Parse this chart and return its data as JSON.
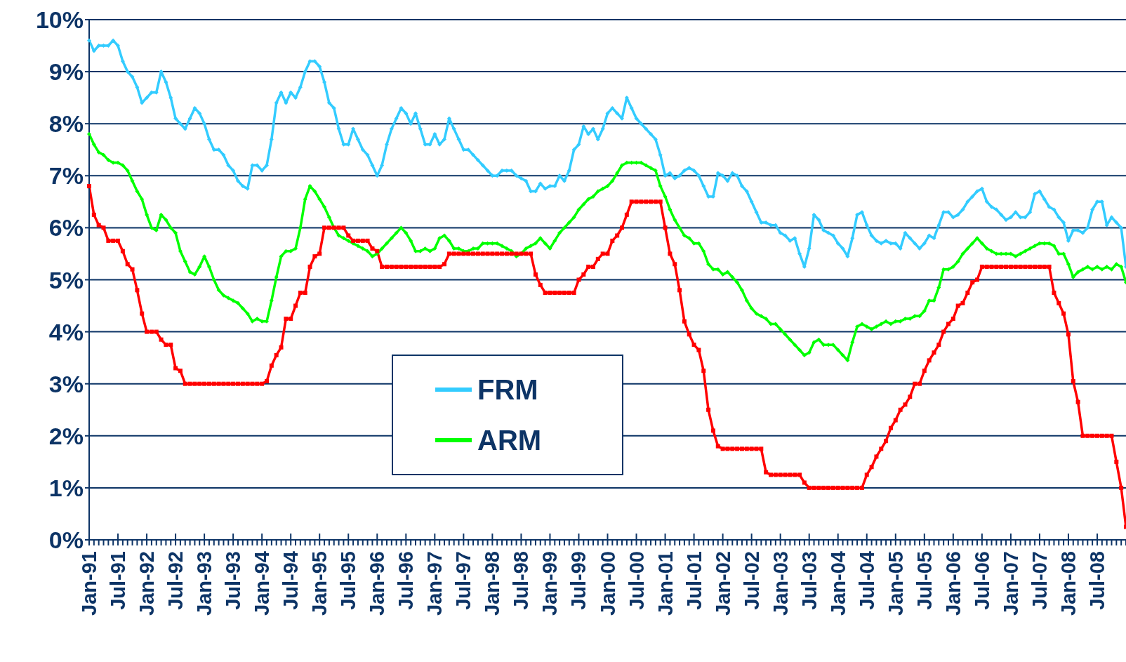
{
  "chart_data": {
    "type": "line",
    "categories": [
      "Jan-91",
      null,
      null,
      null,
      null,
      null,
      "Jul-91",
      null,
      null,
      null,
      null,
      null,
      "Jan-92",
      null,
      null,
      null,
      null,
      null,
      "Jul-92",
      null,
      null,
      null,
      null,
      null,
      "Jan-93",
      null,
      null,
      null,
      null,
      null,
      "Jul-93",
      null,
      null,
      null,
      null,
      null,
      "Jan-94",
      null,
      null,
      null,
      null,
      null,
      "Jul-94",
      null,
      null,
      null,
      null,
      null,
      "Jan-95",
      null,
      null,
      null,
      null,
      null,
      "Jul-95",
      null,
      null,
      null,
      null,
      null,
      "Jan-96",
      null,
      null,
      null,
      null,
      null,
      "Jul-96",
      null,
      null,
      null,
      null,
      null,
      "Jan-97",
      null,
      null,
      null,
      null,
      null,
      "Jul-97",
      null,
      null,
      null,
      null,
      null,
      "Jan-98",
      null,
      null,
      null,
      null,
      null,
      "Jul-98",
      null,
      null,
      null,
      null,
      null,
      "Jan-99",
      null,
      null,
      null,
      null,
      null,
      "Jul-99",
      null,
      null,
      null,
      null,
      null,
      "Jan-00",
      null,
      null,
      null,
      null,
      null,
      "Jul-00",
      null,
      null,
      null,
      null,
      null,
      "Jan-01",
      null,
      null,
      null,
      null,
      null,
      "Jul-01",
      null,
      null,
      null,
      null,
      null,
      "Jan-02",
      null,
      null,
      null,
      null,
      null,
      "Jul-02",
      null,
      null,
      null,
      null,
      null,
      "Jan-03",
      null,
      null,
      null,
      null,
      null,
      "Jul-03",
      null,
      null,
      null,
      null,
      null,
      "Jan-04",
      null,
      null,
      null,
      null,
      null,
      "Jul-04",
      null,
      null,
      null,
      null,
      null,
      "Jan-05",
      null,
      null,
      null,
      null,
      null,
      "Jul-05",
      null,
      null,
      null,
      null,
      null,
      "Jan-06",
      null,
      null,
      null,
      null,
      null,
      "Jul-06",
      null,
      null,
      null,
      null,
      null,
      "Jan-07",
      null,
      null,
      null,
      null,
      null,
      "Jul-07",
      null,
      null,
      null,
      null,
      null,
      "Jan-08",
      null,
      null,
      null,
      null,
      null,
      "Jul-08",
      null,
      null,
      null,
      null,
      null,
      null
    ],
    "series": [
      {
        "name": "FRM",
        "color": "#33ccff",
        "marker": "diamond",
        "values": [
          9.6,
          9.4,
          9.5,
          9.5,
          9.5,
          9.6,
          9.5,
          9.2,
          9.0,
          8.9,
          8.7,
          8.4,
          8.5,
          8.6,
          8.6,
          9.0,
          8.8,
          8.5,
          8.1,
          8.0,
          7.9,
          8.1,
          8.3,
          8.2,
          8.0,
          7.7,
          7.5,
          7.5,
          7.4,
          7.2,
          7.1,
          6.9,
          6.8,
          6.75,
          7.2,
          7.2,
          7.1,
          7.2,
          7.7,
          8.4,
          8.6,
          8.4,
          8.6,
          8.5,
          8.7,
          9.0,
          9.2,
          9.2,
          9.1,
          8.8,
          8.4,
          8.3,
          7.9,
          7.6,
          7.6,
          7.9,
          7.7,
          7.5,
          7.4,
          7.2,
          7.0,
          7.2,
          7.6,
          7.9,
          8.1,
          8.3,
          8.2,
          8.0,
          8.2,
          7.9,
          7.6,
          7.6,
          7.8,
          7.6,
          7.7,
          8.1,
          7.9,
          7.7,
          7.5,
          7.5,
          7.4,
          7.3,
          7.2,
          7.1,
          7.0,
          7.0,
          7.1,
          7.1,
          7.1,
          7.0,
          6.95,
          6.9,
          6.7,
          6.7,
          6.85,
          6.75,
          6.8,
          6.8,
          7.0,
          6.9,
          7.1,
          7.5,
          7.6,
          7.95,
          7.8,
          7.9,
          7.7,
          7.9,
          8.2,
          8.3,
          8.2,
          8.1,
          8.5,
          8.3,
          8.1,
          8.0,
          7.9,
          7.8,
          7.7,
          7.4,
          7.0,
          7.05,
          6.95,
          7.0,
          7.1,
          7.15,
          7.1,
          7.0,
          6.8,
          6.6,
          6.6,
          7.05,
          7.0,
          6.9,
          7.05,
          7.0,
          6.8,
          6.7,
          6.5,
          6.3,
          6.1,
          6.1,
          6.05,
          6.05,
          5.9,
          5.85,
          5.75,
          5.8,
          5.5,
          5.25,
          5.6,
          6.25,
          6.15,
          5.95,
          5.9,
          5.85,
          5.7,
          5.6,
          5.45,
          5.8,
          6.25,
          6.3,
          6.05,
          5.85,
          5.75,
          5.7,
          5.75,
          5.7,
          5.7,
          5.6,
          5.9,
          5.8,
          5.7,
          5.6,
          5.7,
          5.85,
          5.8,
          6.05,
          6.3,
          6.3,
          6.2,
          6.25,
          6.35,
          6.5,
          6.6,
          6.7,
          6.75,
          6.5,
          6.4,
          6.35,
          6.25,
          6.15,
          6.2,
          6.3,
          6.2,
          6.2,
          6.3,
          6.65,
          6.7,
          6.55,
          6.4,
          6.35,
          6.2,
          6.1,
          5.75,
          5.95,
          5.95,
          5.9,
          6.0,
          6.35,
          6.5,
          6.5,
          6.05,
          6.2,
          6.1,
          6.0,
          5.25
        ]
      },
      {
        "name": "ARM",
        "color": "#00ff00",
        "marker": "diamond",
        "values": [
          7.8,
          7.6,
          7.45,
          7.4,
          7.3,
          7.25,
          7.25,
          7.2,
          7.1,
          6.9,
          6.7,
          6.55,
          6.25,
          6.0,
          5.95,
          6.25,
          6.15,
          6.0,
          5.9,
          5.55,
          5.35,
          5.15,
          5.1,
          5.25,
          5.45,
          5.25,
          5.0,
          4.8,
          4.7,
          4.65,
          4.6,
          4.55,
          4.45,
          4.35,
          4.2,
          4.25,
          4.2,
          4.2,
          4.6,
          5.05,
          5.45,
          5.55,
          5.55,
          5.6,
          6.0,
          6.55,
          6.8,
          6.7,
          6.55,
          6.4,
          6.2,
          6.0,
          5.85,
          5.8,
          5.75,
          5.7,
          5.65,
          5.6,
          5.55,
          5.45,
          5.5,
          5.6,
          5.7,
          5.8,
          5.9,
          6.0,
          5.9,
          5.75,
          5.55,
          5.55,
          5.6,
          5.55,
          5.6,
          5.8,
          5.85,
          5.75,
          5.6,
          5.6,
          5.55,
          5.55,
          5.6,
          5.6,
          5.7,
          5.7,
          5.7,
          5.7,
          5.65,
          5.6,
          5.55,
          5.45,
          5.5,
          5.6,
          5.65,
          5.7,
          5.8,
          5.7,
          5.6,
          5.75,
          5.9,
          6.0,
          6.1,
          6.2,
          6.35,
          6.45,
          6.55,
          6.6,
          6.7,
          6.75,
          6.8,
          6.9,
          7.05,
          7.2,
          7.25,
          7.25,
          7.25,
          7.25,
          7.2,
          7.15,
          7.1,
          6.8,
          6.6,
          6.35,
          6.15,
          6.0,
          5.85,
          5.8,
          5.7,
          5.7,
          5.55,
          5.3,
          5.2,
          5.2,
          5.1,
          5.15,
          5.05,
          4.95,
          4.8,
          4.6,
          4.45,
          4.35,
          4.3,
          4.25,
          4.15,
          4.15,
          4.05,
          3.95,
          3.85,
          3.75,
          3.65,
          3.55,
          3.6,
          3.8,
          3.85,
          3.75,
          3.75,
          3.75,
          3.65,
          3.55,
          3.45,
          3.8,
          4.1,
          4.15,
          4.1,
          4.05,
          4.1,
          4.15,
          4.2,
          4.15,
          4.2,
          4.2,
          4.25,
          4.25,
          4.3,
          4.3,
          4.4,
          4.6,
          4.6,
          4.85,
          5.2,
          5.2,
          5.25,
          5.35,
          5.5,
          5.6,
          5.7,
          5.8,
          5.7,
          5.6,
          5.55,
          5.5,
          5.5,
          5.5,
          5.5,
          5.45,
          5.5,
          5.55,
          5.6,
          5.65,
          5.7,
          5.7,
          5.7,
          5.65,
          5.5,
          5.5,
          5.3,
          5.05,
          5.15,
          5.2,
          5.25,
          5.2,
          5.25,
          5.2,
          5.25,
          5.2,
          5.3,
          5.25,
          4.95
        ]
      },
      {
        "color": "#ff0000",
        "marker": "square",
        "values": [
          6.8,
          6.25,
          6.05,
          6.0,
          5.75,
          5.75,
          5.75,
          5.55,
          5.3,
          5.2,
          4.8,
          4.35,
          4.0,
          4.0,
          4.0,
          3.85,
          3.75,
          3.75,
          3.3,
          3.25,
          3.0,
          3.0,
          3.0,
          3.0,
          3.0,
          3.0,
          3.0,
          3.0,
          3.0,
          3.0,
          3.0,
          3.0,
          3.0,
          3.0,
          3.0,
          3.0,
          3.0,
          3.05,
          3.35,
          3.55,
          3.7,
          4.25,
          4.25,
          4.5,
          4.75,
          4.75,
          5.25,
          5.45,
          5.5,
          6.0,
          6.0,
          6.0,
          6.0,
          6.0,
          5.85,
          5.75,
          5.75,
          5.75,
          5.75,
          5.6,
          5.55,
          5.25,
          5.25,
          5.25,
          5.25,
          5.25,
          5.25,
          5.25,
          5.25,
          5.25,
          5.25,
          5.25,
          5.25,
          5.25,
          5.3,
          5.5,
          5.5,
          5.5,
          5.5,
          5.5,
          5.5,
          5.5,
          5.5,
          5.5,
          5.5,
          5.5,
          5.5,
          5.5,
          5.5,
          5.5,
          5.5,
          5.5,
          5.5,
          5.1,
          4.9,
          4.75,
          4.75,
          4.75,
          4.75,
          4.75,
          4.75,
          4.75,
          5.0,
          5.1,
          5.25,
          5.25,
          5.4,
          5.5,
          5.5,
          5.75,
          5.85,
          6.0,
          6.25,
          6.5,
          6.5,
          6.5,
          6.5,
          6.5,
          6.5,
          6.5,
          6.0,
          5.5,
          5.3,
          4.8,
          4.2,
          3.95,
          3.75,
          3.65,
          3.25,
          2.5,
          2.1,
          1.8,
          1.75,
          1.75,
          1.75,
          1.75,
          1.75,
          1.75,
          1.75,
          1.75,
          1.75,
          1.3,
          1.25,
          1.25,
          1.25,
          1.25,
          1.25,
          1.25,
          1.25,
          1.1,
          1.0,
          1.0,
          1.0,
          1.0,
          1.0,
          1.0,
          1.0,
          1.0,
          1.0,
          1.0,
          1.0,
          1.0,
          1.25,
          1.4,
          1.6,
          1.75,
          1.9,
          2.15,
          2.3,
          2.5,
          2.6,
          2.75,
          3.0,
          3.0,
          3.25,
          3.45,
          3.6,
          3.75,
          4.0,
          4.15,
          4.25,
          4.5,
          4.55,
          4.75,
          4.95,
          5.0,
          5.25,
          5.25,
          5.25,
          5.25,
          5.25,
          5.25,
          5.25,
          5.25,
          5.25,
          5.25,
          5.25,
          5.25,
          5.25,
          5.25,
          5.25,
          4.75,
          4.55,
          4.35,
          3.95,
          3.05,
          2.65,
          2.0,
          2.0,
          2.0,
          2.0,
          2.0,
          2.0,
          2.0,
          1.5,
          1.0,
          0.25
        ]
      }
    ],
    "ylim": [
      0,
      10
    ],
    "yticks": [
      {
        "value": 0,
        "label": "0%"
      },
      {
        "value": 1,
        "label": "1%"
      },
      {
        "value": 2,
        "label": "2%"
      },
      {
        "value": 3,
        "label": "3%"
      },
      {
        "value": 4,
        "label": "4%"
      },
      {
        "value": 5,
        "label": "5%"
      },
      {
        "value": 6,
        "label": "6%"
      },
      {
        "value": 7,
        "label": "7%"
      },
      {
        "value": 8,
        "label": "8%"
      },
      {
        "value": 9,
        "label": "9%"
      },
      {
        "value": 10,
        "label": "10%"
      }
    ],
    "grid": "y",
    "legend": "bottom",
    "line_style": "solid"
  }
}
